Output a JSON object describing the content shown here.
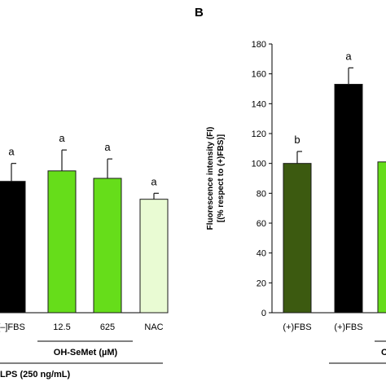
{
  "panel_b_label": "B",
  "chart_data": [
    {
      "panel": "A",
      "type": "bar",
      "categories": [
        "[–]FBS",
        "12.5",
        "625",
        "NAC"
      ],
      "values": [
        88,
        95,
        90,
        76
      ],
      "errors": [
        12,
        14,
        13,
        4
      ],
      "significance": [
        "a",
        "a",
        "a",
        "a"
      ],
      "bar_colors": [
        "#000000",
        "#66dd1a",
        "#66dd1a",
        "#e9fbd3"
      ],
      "group_labels": [
        "OH-SeMet (µM)",
        "LPS (250 ng/mL)"
      ],
      "ylim": [
        0,
        180
      ],
      "ylabel": "",
      "title": ""
    },
    {
      "panel": "B",
      "type": "bar",
      "categories": [
        "(+)FBS",
        "(+)FBS",
        ""
      ],
      "values": [
        100,
        153,
        101
      ],
      "errors": [
        8,
        11,
        0
      ],
      "significance": [
        "b",
        "a",
        ""
      ],
      "bar_colors": [
        "#3c5a10",
        "#000000",
        "#66dd1a"
      ],
      "group_labels": [
        "C"
      ],
      "ylim": [
        0,
        180
      ],
      "yticks": [
        0,
        20,
        40,
        60,
        80,
        100,
        120,
        140,
        160,
        180
      ],
      "ylabel_line1": "Fluorescence intensity (FI)",
      "ylabel_line2": "[(% respect to (+)FBS)]",
      "title": ""
    }
  ]
}
